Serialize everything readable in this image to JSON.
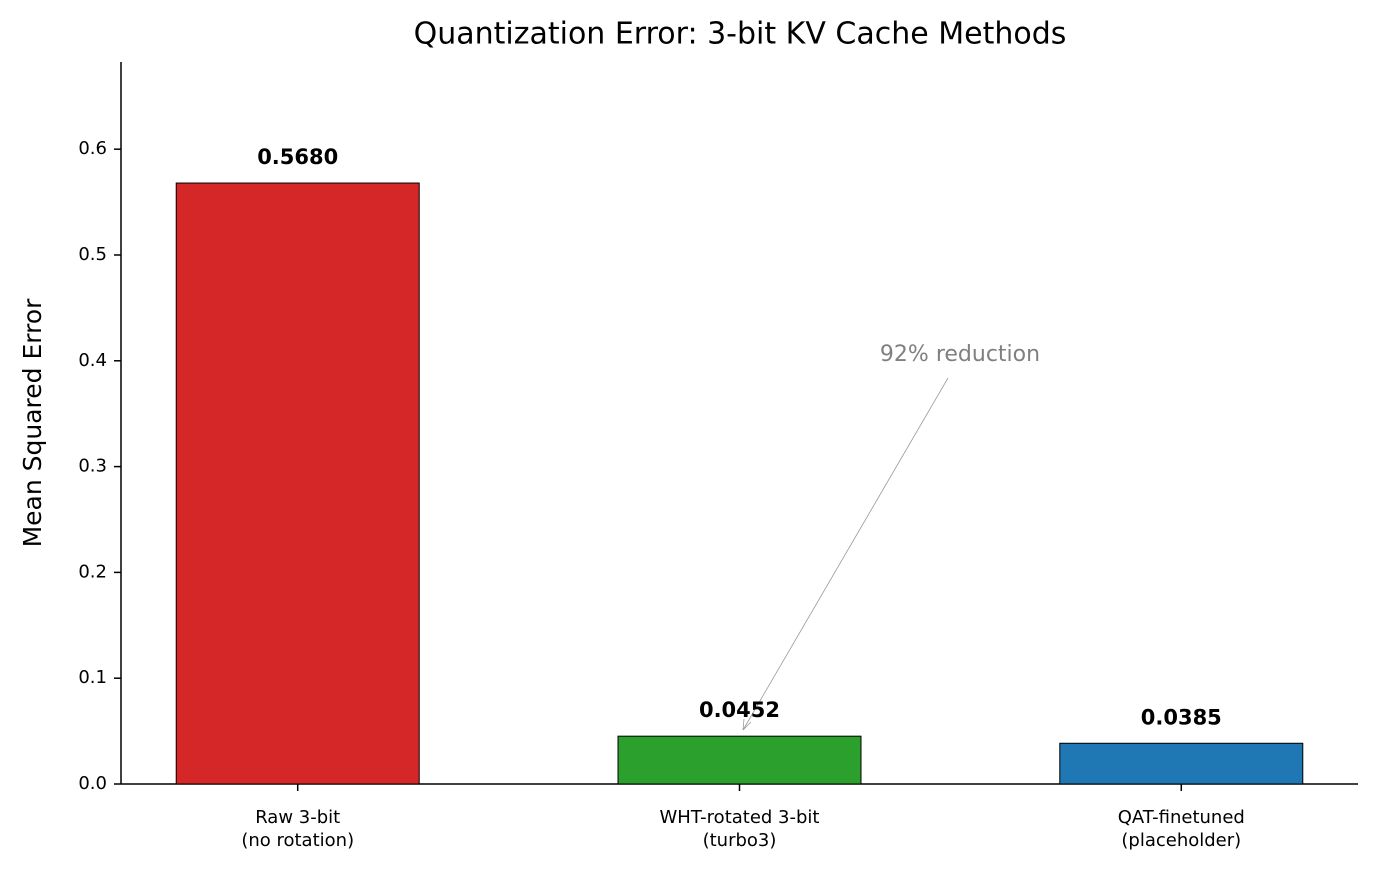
{
  "chart_data": {
    "type": "bar",
    "title": "Quantization Error: 3-bit KV Cache Methods",
    "y_label": "Mean Squared Error",
    "categories": [
      "Raw 3-bit\n(no rotation)",
      "WHT-rotated 3-bit\n(turbo3)",
      "QAT-finetuned\n(placeholder)"
    ],
    "values": [
      0.568,
      0.0452,
      0.0385
    ],
    "value_labels": [
      "0.5680",
      "0.0452",
      "0.0385"
    ],
    "colors": [
      "#d62728",
      "#2ca02c",
      "#1f77b4"
    ],
    "ylim": [
      0,
      0.6824
    ],
    "yticks": [
      {
        "value": 0,
        "label": "0.0"
      },
      0.1,
      0.2,
      0.3,
      0.4,
      0.5,
      0.6
    ],
    "annotation": "92% reduction"
  }
}
